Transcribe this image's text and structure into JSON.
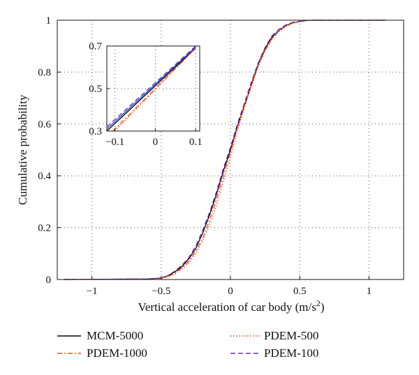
{
  "chart_data": [
    {
      "type": "line",
      "title": "",
      "xlabel": "Vertical acceleration of car body (m/s",
      "xlabel_sup": "2",
      "xlabel_close": ")",
      "ylabel": "Cumulative probability",
      "xlim": [
        -1.25,
        1.25
      ],
      "ylim": [
        0,
        1
      ],
      "xticks": [
        -1,
        -0.5,
        0,
        0.5,
        1
      ],
      "xtick_labels": [
        "−1",
        "−0.5",
        "0",
        "0.5",
        "1"
      ],
      "yticks": [
        0,
        0.2,
        0.4,
        0.6,
        0.8,
        1
      ],
      "ytick_labels": [
        "0",
        "0.2",
        "0.4",
        "0.6",
        "0.8",
        "1"
      ],
      "grid": true,
      "legend_position": "below",
      "series": [
        {
          "name": "MCM-5000",
          "color": "#000000",
          "dash": "solid",
          "x": [
            -1.2,
            -0.6,
            -0.5,
            -0.45,
            -0.4,
            -0.35,
            -0.3,
            -0.25,
            -0.2,
            -0.15,
            -0.1,
            -0.05,
            0,
            0.05,
            0.1,
            0.15,
            0.2,
            0.25,
            0.3,
            0.35,
            0.4,
            0.45,
            0.5,
            0.55,
            0.6,
            0.7,
            1.12
          ],
          "y": [
            0,
            0.002,
            0.006,
            0.015,
            0.03,
            0.05,
            0.08,
            0.12,
            0.18,
            0.25,
            0.33,
            0.42,
            0.5,
            0.59,
            0.67,
            0.75,
            0.83,
            0.89,
            0.935,
            0.96,
            0.98,
            0.99,
            0.995,
            0.999,
            1,
            1,
            1
          ]
        },
        {
          "name": "PDEM-1000",
          "color": "#e0501a",
          "dash": "dashdot",
          "x": [
            -1.2,
            -0.6,
            -0.5,
            -0.45,
            -0.4,
            -0.35,
            -0.3,
            -0.25,
            -0.2,
            -0.15,
            -0.1,
            -0.05,
            0,
            0.05,
            0.1,
            0.15,
            0.2,
            0.25,
            0.3,
            0.35,
            0.4,
            0.45,
            0.5,
            0.55,
            0.6,
            0.7,
            1.12
          ],
          "y": [
            0,
            0.002,
            0.005,
            0.012,
            0.025,
            0.045,
            0.07,
            0.11,
            0.16,
            0.23,
            0.31,
            0.4,
            0.49,
            0.585,
            0.67,
            0.75,
            0.825,
            0.885,
            0.93,
            0.96,
            0.978,
            0.99,
            0.995,
            0.999,
            1,
            1,
            1
          ]
        },
        {
          "name": "PDEM-500",
          "color": "#e8401a",
          "dash": "dotted",
          "x": [
            -1.2,
            -0.6,
            -0.5,
            -0.45,
            -0.4,
            -0.35,
            -0.3,
            -0.25,
            -0.2,
            -0.15,
            -0.1,
            -0.05,
            0,
            0.05,
            0.1,
            0.15,
            0.2,
            0.25,
            0.3,
            0.35,
            0.4,
            0.45,
            0.5,
            0.55,
            0.6,
            0.7,
            1.12
          ],
          "y": [
            0,
            0.001,
            0.004,
            0.01,
            0.022,
            0.04,
            0.065,
            0.1,
            0.15,
            0.21,
            0.29,
            0.38,
            0.47,
            0.57,
            0.66,
            0.74,
            0.82,
            0.88,
            0.925,
            0.955,
            0.975,
            0.988,
            0.994,
            0.999,
            1,
            1,
            1
          ]
        },
        {
          "name": "PDEM-100",
          "color": "#6a2db8",
          "dash": "dashed",
          "x": [
            -1.2,
            -0.6,
            -0.5,
            -0.45,
            -0.4,
            -0.35,
            -0.3,
            -0.25,
            -0.2,
            -0.15,
            -0.1,
            -0.05,
            0,
            0.05,
            0.1,
            0.15,
            0.2,
            0.25,
            0.3,
            0.35,
            0.4,
            0.45,
            0.5,
            0.55,
            0.6,
            0.7,
            1.12
          ],
          "y": [
            0,
            0.002,
            0.006,
            0.016,
            0.033,
            0.055,
            0.085,
            0.13,
            0.19,
            0.26,
            0.34,
            0.43,
            0.51,
            0.6,
            0.68,
            0.76,
            0.835,
            0.895,
            0.94,
            0.965,
            0.982,
            0.992,
            0.996,
            0.999,
            1,
            1,
            1
          ]
        }
      ]
    },
    {
      "type": "line",
      "title": "",
      "xlabel": "",
      "ylabel": "",
      "xlim": [
        -0.12,
        0.11
      ],
      "ylim": [
        0.3,
        0.7
      ],
      "xticks": [
        -0.1,
        0,
        0.1
      ],
      "xtick_labels": [
        "−0.1",
        "0",
        "0.1"
      ],
      "yticks": [
        0.3,
        0.5,
        0.7
      ],
      "ytick_labels": [
        "0.3",
        "0.5",
        "0.7"
      ],
      "grid": true,
      "series": [
        {
          "name": "MCM-5000",
          "color": "#000000",
          "dash": "solid",
          "x": [
            -0.12,
            0.1
          ],
          "y": [
            0.3,
            0.69
          ]
        },
        {
          "name": "PDEM-1000",
          "color": "#e0501a",
          "dash": "dashdot",
          "x": [
            -0.105,
            0.1
          ],
          "y": [
            0.3,
            0.69
          ]
        },
        {
          "name": "PDEM-500",
          "color": "#e8401a",
          "dash": "dotted",
          "x": [
            -0.1,
            0.1
          ],
          "y": [
            0.3,
            0.69
          ]
        },
        {
          "name": "PDEM-100",
          "color": "#6a2db8",
          "dash": "dashed",
          "x": [
            -0.12,
            0.1
          ],
          "y": [
            0.32,
            0.7
          ]
        },
        {
          "name": "",
          "color": "#2244cc",
          "dash": "solid",
          "x": [
            -0.12,
            0.1
          ],
          "y": [
            0.31,
            0.695
          ]
        }
      ]
    }
  ],
  "legend": {
    "items": [
      {
        "label": "MCM-5000",
        "color": "#000000",
        "dash": "solid"
      },
      {
        "label": "PDEM-500",
        "color": "#e8401a",
        "dash": "dotted"
      },
      {
        "label": "PDEM-1000",
        "color": "#e0501a",
        "dash": "dashdot"
      },
      {
        "label": "PDEM-100",
        "color": "#6a2db8",
        "dash": "dashed"
      }
    ]
  }
}
